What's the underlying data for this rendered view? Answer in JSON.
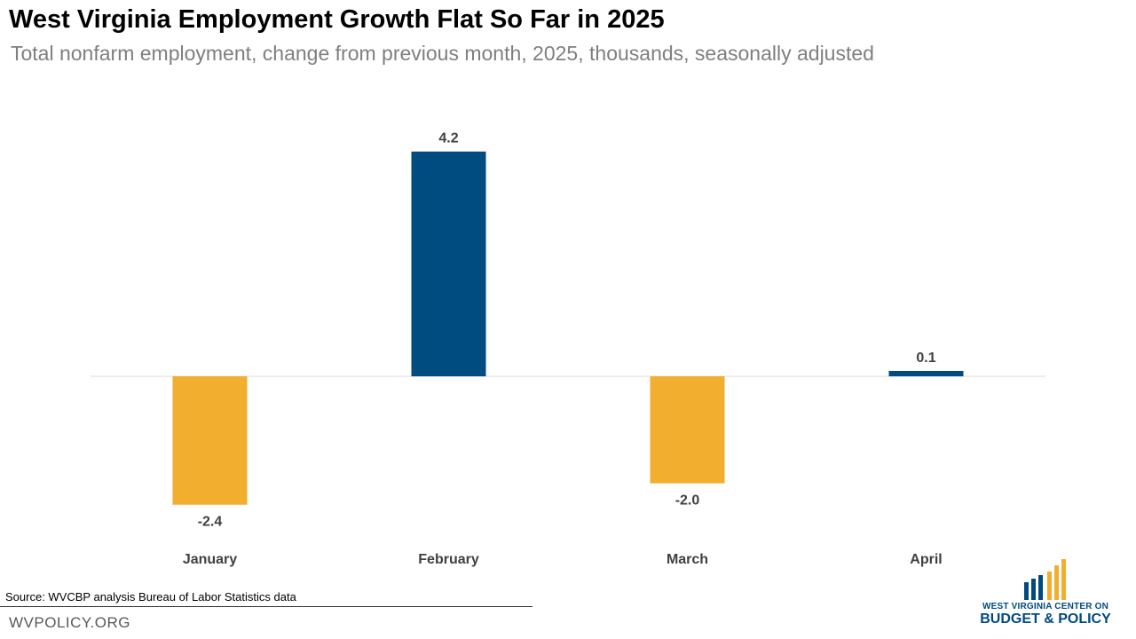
{
  "title": "West Virginia Employment Growth Flat So Far in 2025",
  "subtitle": "Total nonfarm employment, change from previous month, 2025, thousands, seasonally adjusted",
  "source": "Source: WVCBP analysis Bureau of Labor Statistics data",
  "site": "WVPOLICY.ORG",
  "logo": {
    "line1": "WEST VIRGINIA CENTER ON",
    "line2": "BUDGET & POLICY",
    "colors": {
      "blue": "#004a80",
      "gold": "#f2ae2e"
    }
  },
  "colors": {
    "positive": "#004b80",
    "negative": "#f2ae2e",
    "baseline": "#d9d9d9",
    "label": "#404040"
  },
  "chart_data": {
    "type": "bar",
    "title": "West Virginia Employment Growth Flat So Far in 2025",
    "subtitle": "Total nonfarm employment, change from previous month, 2025, thousands, seasonally adjusted",
    "categories": [
      "January",
      "February",
      "March",
      "April"
    ],
    "values": [
      -2.4,
      4.2,
      -2.0,
      0.1
    ],
    "data_labels": [
      "-2.4",
      "4.2",
      "-2.0",
      "0.1"
    ],
    "xlabel": "",
    "ylabel": "",
    "grid": false,
    "legend": "none"
  }
}
